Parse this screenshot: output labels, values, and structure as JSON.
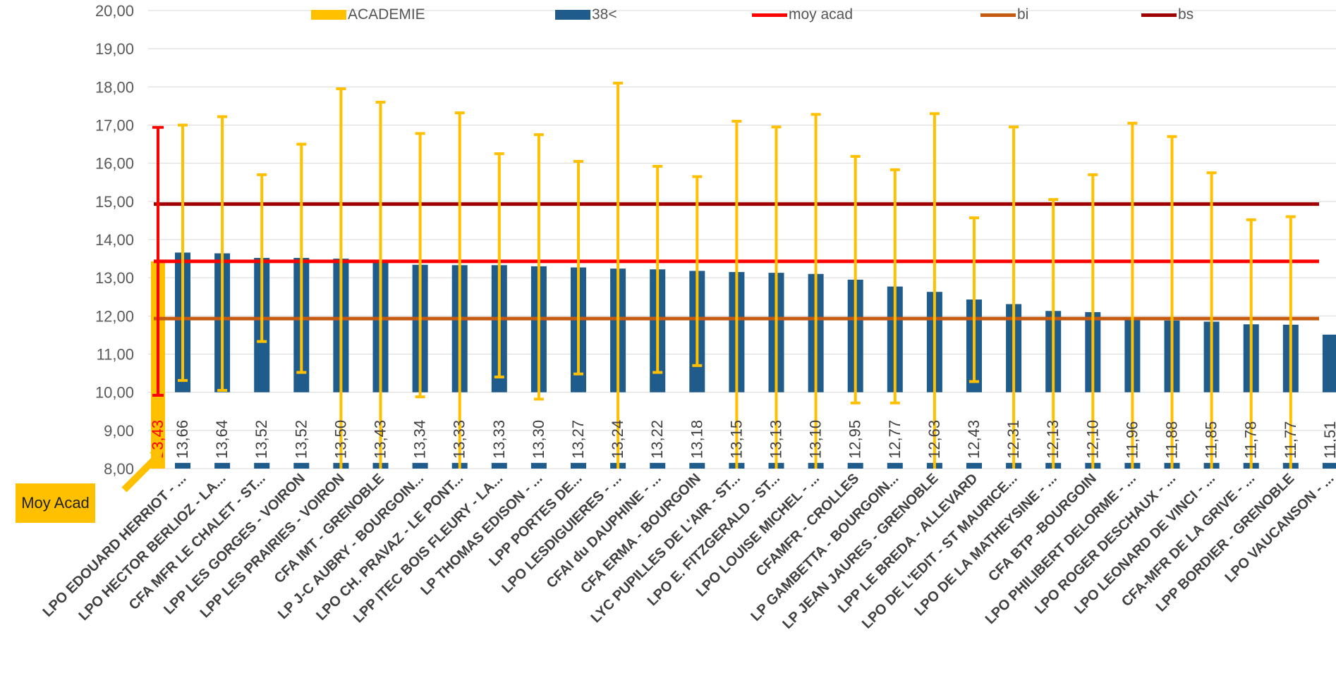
{
  "chart_data": {
    "type": "bar",
    "ylim": [
      8,
      20
    ],
    "y_ticks": [
      "8,00",
      "9,00",
      "10,00",
      "11,00",
      "12,00",
      "13,00",
      "14,00",
      "15,00",
      "16,00",
      "17,00",
      "18,00",
      "19,00",
      "20,00"
    ],
    "grid": true,
    "legend_position": "top",
    "legend": [
      {
        "key": "academie",
        "label": "ACADEMIE",
        "color": "#FFC000",
        "kind": "bar"
      },
      {
        "key": "s38",
        "label": "38<",
        "color": "#1F5C8C",
        "kind": "bar"
      },
      {
        "key": "moy",
        "label": "moy acad",
        "color": "#FF0000",
        "kind": "line"
      },
      {
        "key": "bi",
        "label": "bi",
        "color": "#C55A11",
        "kind": "line"
      },
      {
        "key": "bs",
        "label": "bs",
        "color": "#9E0000",
        "kind": "line"
      }
    ],
    "academie": {
      "value": 13.43,
      "label": "13,43",
      "err_min": 9.92,
      "err_max": 16.94,
      "color": "#FFC000",
      "err_color": "#FF0000"
    },
    "categories": [
      "LPO EDOUARD HERRIOT - ...",
      "LPO HECTOR BERLIOZ - LA...",
      "CFA MFR LE CHALET - ST...",
      "LPP LES GORGES - VOIRON",
      "LPP LES PRAIRIES - VOIRON",
      "CFA IMT - GRENOBLE",
      "LP J-C AUBRY - BOURGOIN...",
      "LPO CH. PRAVAZ - LE PONT...",
      "LPP ITEC BOIS FLEURY - LA...",
      "LP THOMAS EDISON - ...",
      "LPP PORTES DE...",
      "LPO LESDIGUIERES - ...",
      "CFAI du DAUPHINE - ...",
      "CFA ERMA - BOURGOIN",
      "LYC PUPILLES DE L'AIR - ST...",
      "LPO E. FITZGERALD - ST...",
      "LPO LOUISE MICHEL - ...",
      "CFAMFR - CROLLES",
      "LP GAMBETTA - BOURGOIN...",
      "LP JEAN JAURES - GRENOBLE",
      "LPP LE BREDA - ALLEVARD",
      "LPO DE L'EDIT - ST MAURICE...",
      "LPO DE LA MATHEYSINE - ...",
      "CFA BTP -BOURGOIN",
      "LPO PHILIBERT DELORME - ...",
      "LPO ROGER DESCHAUX - ...",
      "LPO LEONARD DE VINCI - ...",
      "CFA-MFR DE LA GRIVE - ...",
      "LPP BORDIER - GRENOBLE",
      "LPO VAUCANSON - ..."
    ],
    "series": [
      {
        "name": "38<",
        "values": [
          13.66,
          13.64,
          13.52,
          13.52,
          13.5,
          13.43,
          13.34,
          13.33,
          13.33,
          13.3,
          13.27,
          13.24,
          13.22,
          13.18,
          13.15,
          13.13,
          13.1,
          12.95,
          12.77,
          12.63,
          12.43,
          12.31,
          12.13,
          12.1,
          11.96,
          11.88,
          11.85,
          11.78,
          11.77,
          11.51
        ],
        "labels": [
          "13,66",
          "13,64",
          "13,52",
          "13,52",
          "13,50",
          "13,43",
          "13,34",
          "13,33",
          "13,33",
          "13,30",
          "13,27",
          "13,24",
          "13,22",
          "13,18",
          "13,15",
          "13,13",
          "13,10",
          "12,95",
          "12,77",
          "12,63",
          "12,43",
          "12,31",
          "12,13",
          "12,10",
          "11,96",
          "11,88",
          "11,85",
          "11,78",
          "11,77",
          "11,51"
        ],
        "err_min": [
          10.31,
          10.05,
          11.33,
          10.52,
          8.0,
          8.0,
          9.88,
          8.0,
          10.4,
          9.82,
          10.48,
          8.0,
          10.52,
          10.7,
          8.0,
          8.0,
          8.0,
          9.72,
          9.72,
          8.0,
          10.28,
          8.0,
          8.0,
          8.0,
          8.0,
          8.0,
          8.0,
          8.0,
          8.0,
          null
        ],
        "err_max": [
          17.0,
          17.22,
          15.7,
          16.5,
          17.95,
          17.6,
          16.78,
          17.32,
          16.25,
          16.75,
          16.05,
          18.1,
          15.92,
          15.65,
          17.1,
          16.95,
          17.28,
          16.18,
          15.83,
          17.3,
          14.57,
          16.95,
          15.05,
          15.7,
          17.05,
          16.7,
          15.75,
          14.52,
          14.6,
          null
        ]
      }
    ],
    "reference_lines": [
      {
        "name": "moy acad",
        "value": 13.43,
        "color": "#FF0000"
      },
      {
        "name": "bi",
        "value": 11.93,
        "color": "#C55A11"
      },
      {
        "name": "bs",
        "value": 14.93,
        "color": "#9E0000"
      }
    ],
    "colors": {
      "bar": "#1F5C8C",
      "error_bar": "#FFC000",
      "grid": "#D9D9D9",
      "axis_text": "#595959"
    },
    "annotation": {
      "text": "Moy Acad",
      "color": "#FFC000"
    }
  }
}
